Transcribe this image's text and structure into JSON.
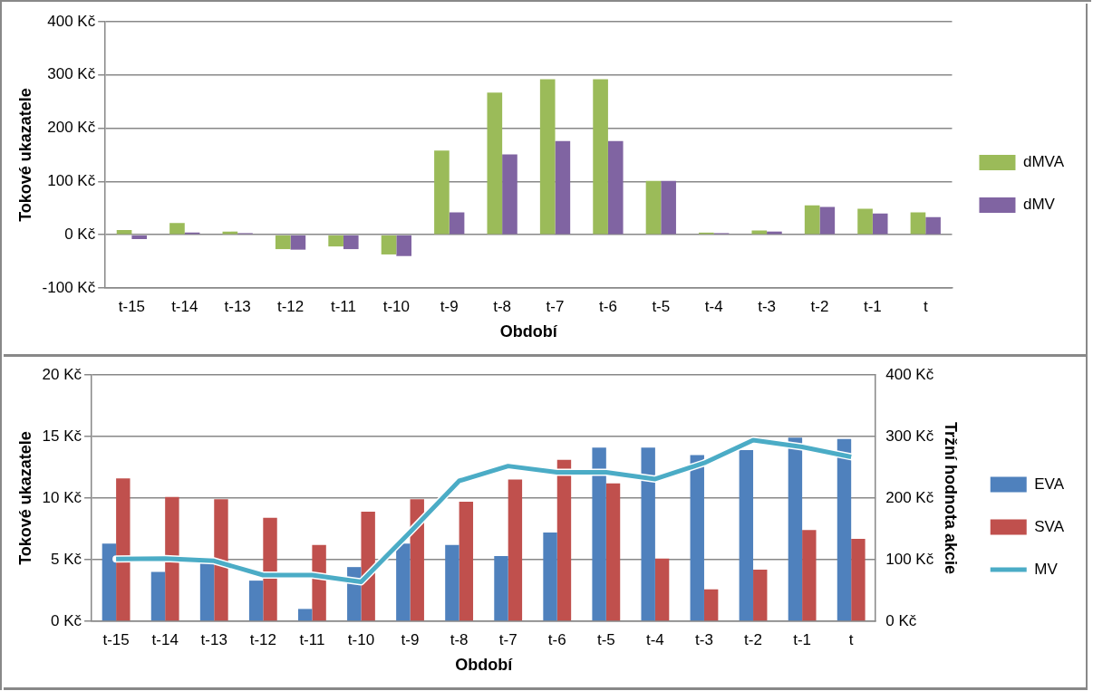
{
  "chart_data": [
    {
      "type": "bar",
      "xlabel": "Období",
      "ylabel": "Tokové ukazatele",
      "categories": [
        "t-15",
        "t-14",
        "t-13",
        "t-12",
        "t-11",
        "t-10",
        "t-9",
        "t-8",
        "t-7",
        "t-6",
        "t-5",
        "t-4",
        "t-3",
        "t-2",
        "t-1",
        "t"
      ],
      "series": [
        {
          "name": "dMVA",
          "color": "#9bbb59",
          "values": [
            9,
            22,
            6,
            -27,
            -22,
            -37,
            158,
            267,
            292,
            292,
            101,
            4,
            8,
            55,
            49,
            42
          ]
        },
        {
          "name": "dMV",
          "color": "#8064a2",
          "values": [
            -8,
            4,
            3,
            -28,
            -27,
            -40,
            42,
            151,
            176,
            176,
            101,
            3,
            6,
            52,
            40,
            33
          ]
        }
      ],
      "ylim": [
        -100,
        400
      ],
      "yticks": [
        {
          "value": -100,
          "label": "-100 Kč"
        },
        {
          "value": 0,
          "label": "0 Kč"
        },
        {
          "value": 100,
          "label": "100 Kč"
        },
        {
          "value": 200,
          "label": "200 Kč"
        },
        {
          "value": 300,
          "label": "300 Kč"
        },
        {
          "value": 400,
          "label": "400 Kč"
        }
      ],
      "grid": "y",
      "legend": "right"
    },
    {
      "type": "bar",
      "xlabel": "Období",
      "ylabel": "Tokové ukazatele",
      "y2label": "Tržní hodnota akcie",
      "categories": [
        "t-15",
        "t-14",
        "t-13",
        "t-12",
        "t-11",
        "t-10",
        "t-9",
        "t-8",
        "t-7",
        "t-6",
        "t-5",
        "t-4",
        "t-3",
        "t-2",
        "t-1",
        "t"
      ],
      "series": [
        {
          "name": "EVA",
          "color": "#4f81bd",
          "values": [
            6.3,
            4.0,
            4.8,
            3.3,
            1.0,
            4.4,
            6.3,
            6.2,
            5.3,
            7.2,
            14.1,
            14.1,
            13.5,
            13.9,
            14.9,
            14.8
          ]
        },
        {
          "name": "SVA",
          "color": "#c0504d",
          "values": [
            11.6,
            10.1,
            9.9,
            8.4,
            6.2,
            8.9,
            9.9,
            9.7,
            11.5,
            13.1,
            11.2,
            5.1,
            2.6,
            4.2,
            7.4,
            6.7
          ]
        },
        {
          "name": "MV",
          "type": "line",
          "axis": "y2",
          "color": "#4bacc6",
          "marker": "none",
          "line_style": "solid",
          "values": [
            101,
            102,
            98,
            75,
            75,
            64,
            145,
            228,
            252,
            242,
            242,
            231,
            257,
            294,
            283,
            267
          ]
        }
      ],
      "ylim": [
        0,
        20
      ],
      "yticks": [
        {
          "value": 0,
          "label": "0 Kč"
        },
        {
          "value": 5,
          "label": "5 Kč"
        },
        {
          "value": 10,
          "label": "10 Kč"
        },
        {
          "value": 15,
          "label": "15 Kč"
        },
        {
          "value": 20,
          "label": "20 Kč"
        }
      ],
      "y2lim": [
        0,
        400
      ],
      "y2ticks": [
        {
          "value": 0,
          "label": "0 Kč"
        },
        {
          "value": 100,
          "label": "100 Kč"
        },
        {
          "value": 200,
          "label": "200 Kč"
        },
        {
          "value": 300,
          "label": "300 Kč"
        },
        {
          "value": 400,
          "label": "400 Kč"
        }
      ],
      "grid": "y",
      "legend": "right"
    }
  ]
}
